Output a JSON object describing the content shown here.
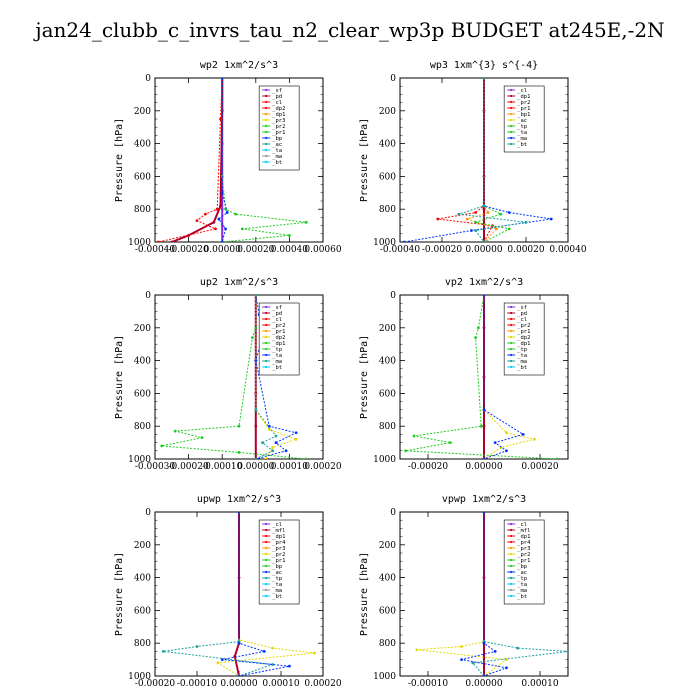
{
  "title": "jan24_clubb_c_invrs_tau_n2_clear_wp3p  BUDGET at245E,-2N",
  "colors": {
    "purple": "#8a2be2",
    "maroon": "#b0002a",
    "red": "#ff0000",
    "orange": "#ff9900",
    "yellow": "#e6d800",
    "green": "#22cc22",
    "blue": "#0033ff",
    "teal": "#1aa0a0",
    "cyan": "#00ccff",
    "gray": "#999999"
  },
  "chart_data": [
    {
      "type": "line",
      "title": "wp2   1xm^2/s^3",
      "ylabel": "Pressure [hPa]",
      "ylim": [
        1000,
        0
      ],
      "xlim": [
        -0.0004,
        0.0006
      ],
      "xticks": [
        "-0.00040",
        "-0.00020",
        "0.00000",
        "0.00020",
        "0.00040",
        "0.00060"
      ],
      "yticks": [
        "0",
        "200",
        "400",
        "600",
        "800",
        "1000"
      ],
      "legend": [
        "_sf",
        "_pd",
        "_cl",
        "_dp2",
        "_dp1",
        "_pr3",
        "_pr2",
        "_pr1",
        "_bp",
        "_ac",
        "_ta",
        "_ma",
        "_bt"
      ],
      "series": [
        {
          "name": "_sf",
          "color": "#8a2be2",
          "x": [
            0.0,
            0.0,
            0.0,
            0.0,
            0.0,
            0.0,
            0.0
          ],
          "y": [
            0,
            200,
            400,
            600,
            800,
            900,
            1000
          ]
        },
        {
          "name": "_cl",
          "color": "#b0002a",
          "x": [
            0.0,
            0.0,
            -1e-05,
            -5e-05,
            -0.0002,
            -0.0003
          ],
          "y": [
            0,
            200,
            780,
            880,
            960,
            1000
          ]
        },
        {
          "name": "_dp1",
          "color": "#ff0000",
          "x": [
            0.0,
            -1e-05,
            -3e-05,
            -0.0001,
            -0.00015,
            -4e-05,
            -0.00038
          ],
          "y": [
            0,
            250,
            800,
            830,
            870,
            920,
            1000
          ]
        },
        {
          "name": "_pr1",
          "color": "#22cc22",
          "x": [
            0.0,
            0.0,
            2e-05,
            8e-05,
            0.0005,
            0.00012,
            0.0004,
            0.0
          ],
          "y": [
            0,
            600,
            800,
            830,
            880,
            920,
            960,
            1000
          ]
        },
        {
          "name": "_ac",
          "color": "#0033ff",
          "x": [
            0.0,
            0.0,
            3e-05,
            -2e-05,
            2e-05,
            0.0
          ],
          "y": [
            0,
            700,
            820,
            860,
            920,
            1000
          ]
        }
      ]
    },
    {
      "type": "line",
      "title": "wp3   1xm^{3} s^{-4}",
      "ylabel": "Pressure [hPa]",
      "ylim": [
        1000,
        0
      ],
      "xlim": [
        -0.0004,
        0.0004
      ],
      "xticks": [
        "-0.00040",
        "-0.00020",
        "0.00000",
        "0.00020",
        "0.00040"
      ],
      "yticks": [
        "0",
        "200",
        "400",
        "600",
        "800",
        "1000"
      ],
      "legend": [
        "_cl",
        "_dp1",
        "_pr2",
        "_pr1",
        "_bp1",
        "_ac",
        "_tp",
        "_ta",
        "_ma",
        "_bt"
      ],
      "series": [
        {
          "name": "_cl",
          "color": "#b0002a",
          "x": [
            0.0,
            0.0,
            0.0,
            0.0,
            0.0
          ],
          "y": [
            0,
            200,
            600,
            800,
            1000
          ]
        },
        {
          "name": "_dp1",
          "color": "#ff0000",
          "x": [
            0.0,
            0.0,
            -4e-05,
            -0.00022,
            4e-05,
            0.0
          ],
          "y": [
            0,
            780,
            820,
            860,
            900,
            1000
          ]
        },
        {
          "name": "_pr1",
          "color": "#ff9900",
          "x": [
            0.0,
            0.0,
            2e-05,
            -8e-05,
            6e-05,
            0.0
          ],
          "y": [
            0,
            780,
            820,
            860,
            920,
            1000
          ]
        },
        {
          "name": "_ac",
          "color": "#22cc22",
          "x": [
            0.0,
            0.0,
            8e-05,
            -4e-05,
            0.00012,
            0.0
          ],
          "y": [
            0,
            780,
            830,
            880,
            920,
            1000
          ]
        },
        {
          "name": "_tp",
          "color": "#0033ff",
          "x": [
            0.0,
            0.0,
            0.00012,
            0.00032,
            -6e-05,
            -0.00038
          ],
          "y": [
            0,
            780,
            820,
            860,
            930,
            1000
          ]
        },
        {
          "name": "_ta",
          "color": "#1aa0a0",
          "x": [
            0.0,
            0.0,
            -0.00012,
            0.0002,
            -4e-05,
            0.0
          ],
          "y": [
            0,
            780,
            830,
            880,
            930,
            1000
          ]
        }
      ]
    },
    {
      "type": "line",
      "title": "up2   1xm^2/s^3",
      "ylabel": "Pressure [hPa]",
      "ylim": [
        1000,
        0
      ],
      "xlim": [
        -0.0003,
        0.0002
      ],
      "xticks": [
        "-0.00030",
        "-0.00020",
        "-0.00010",
        "0.00000",
        "0.00010",
        "0.00020"
      ],
      "yticks": [
        "0",
        "200",
        "400",
        "600",
        "800",
        "1000"
      ],
      "legend": [
        "_sf",
        "_pd",
        "_cl",
        "_pr2",
        "_pr1",
        "_dp2",
        "_dp1",
        "_tp",
        "_ta",
        "_ma",
        "_bt"
      ],
      "series": [
        {
          "name": "_cl",
          "color": "#b0002a",
          "x": [
            0.0,
            0.0,
            0.0,
            0.0,
            0.0,
            0.0
          ],
          "y": [
            0,
            200,
            400,
            600,
            800,
            1000
          ]
        },
        {
          "name": "_dp1",
          "color": "#22cc22",
          "x": [
            0.0,
            0.0,
            -1e-05,
            -5e-05,
            -0.00024,
            -0.00016,
            -0.00028,
            -5e-05,
            0.00015
          ],
          "y": [
            0,
            200,
            260,
            800,
            830,
            870,
            920,
            960,
            1000
          ]
        },
        {
          "name": "_pr1",
          "color": "#e6d800",
          "x": [
            0.0,
            0.0,
            4e-05,
            0.00012,
            5e-05,
            3e-05
          ],
          "y": [
            0,
            700,
            820,
            880,
            930,
            1000
          ]
        },
        {
          "name": "_tp",
          "color": "#0033ff",
          "x": [
            0.0,
            1e-05,
            2e-05,
            0.0,
            4e-05,
            0.00012,
            6e-05,
            9e-05,
            0.0
          ],
          "y": [
            0,
            120,
            250,
            400,
            800,
            840,
            900,
            950,
            1000
          ]
        },
        {
          "name": "_ta",
          "color": "#1aa0a0",
          "x": [
            0.0,
            0.0,
            6e-05,
            2e-05,
            5e-05,
            0.0
          ],
          "y": [
            0,
            700,
            860,
            900,
            950,
            1000
          ]
        }
      ]
    },
    {
      "type": "line",
      "title": "vp2   1xm^2/s^3",
      "ylabel": "Pressure [hPa]",
      "ylim": [
        1000,
        0
      ],
      "xlim": [
        -0.0003,
        0.0003
      ],
      "xticks": [
        "-0.00020",
        "0.00000",
        "0.00020"
      ],
      "yticks": [
        "0",
        "200",
        "400",
        "600",
        "800",
        "1000"
      ],
      "legend": [
        "_sf",
        "_pd",
        "_cl",
        "_pr2",
        "_pr1",
        "_dp2",
        "_dp1",
        "_tp",
        "_ta",
        "_ma",
        "_bt"
      ],
      "series": [
        {
          "name": "_cl",
          "color": "#b0002a",
          "x": [
            0.0,
            0.0,
            0.0,
            0.0,
            0.0
          ],
          "y": [
            0,
            200,
            500,
            800,
            1000
          ]
        },
        {
          "name": "_dp1",
          "color": "#22cc22",
          "x": [
            0.0,
            -2e-05,
            -3e-05,
            -1e-05,
            -0.00025,
            -0.00012,
            -0.00028,
            0.00026
          ],
          "y": [
            0,
            200,
            260,
            800,
            860,
            900,
            950,
            1000
          ]
        },
        {
          "name": "_pr1",
          "color": "#e6d800",
          "x": [
            0.0,
            0.0,
            8e-05,
            0.00018,
            6e-05,
            0.0
          ],
          "y": [
            0,
            700,
            840,
            880,
            930,
            1000
          ]
        },
        {
          "name": "_tp",
          "color": "#0033ff",
          "x": [
            0.0,
            0.0,
            0.00014,
            4e-05,
            8e-05,
            0.0
          ],
          "y": [
            0,
            700,
            850,
            900,
            950,
            1000
          ]
        }
      ]
    },
    {
      "type": "line",
      "title": "upwp   1xm^2/s^3",
      "ylabel": "Pressure [hPa]",
      "ylim": [
        1000,
        0
      ],
      "xlim": [
        -0.0002,
        0.0002
      ],
      "xticks": [
        "-0.00020",
        "-0.00010",
        "0.00000",
        "0.00010",
        "0.00020"
      ],
      "yticks": [
        "0",
        "200",
        "400",
        "600",
        "800",
        "1000"
      ],
      "legend": [
        "_cl",
        "_mfl",
        "_dp1",
        "_pr4",
        "_pr3",
        "_pr2",
        "_pr1",
        "_bp",
        "_ac",
        "_tp",
        "_ta",
        "_ma",
        "_bt"
      ],
      "series": [
        {
          "name": "_cl",
          "color": "#b0002a",
          "x": [
            0.0,
            0.0,
            0.0,
            -1e-05,
            0.0
          ],
          "y": [
            0,
            400,
            800,
            880,
            1000
          ]
        },
        {
          "name": "_pr1",
          "color": "#e6d800",
          "x": [
            0.0,
            0.0,
            8e-05,
            0.00018,
            -5e-05,
            0.0
          ],
          "y": [
            0,
            780,
            830,
            860,
            920,
            1000
          ]
        },
        {
          "name": "_tp",
          "color": "#1aa0a0",
          "x": [
            0.0,
            0.0,
            -0.0001,
            -0.00018,
            8e-05,
            0.0
          ],
          "y": [
            0,
            790,
            820,
            850,
            930,
            1000
          ]
        },
        {
          "name": "_ta",
          "color": "#0033ff",
          "x": [
            0.0,
            0.0,
            6e-05,
            -4e-05,
            0.00012,
            0.0
          ],
          "y": [
            0,
            800,
            850,
            900,
            940,
            1000
          ]
        }
      ]
    },
    {
      "type": "line",
      "title": "vpwp   1xm^2/s^3",
      "ylabel": "Pressure [hPa]",
      "ylim": [
        1000,
        0
      ],
      "xlim": [
        -0.00015,
        0.00015
      ],
      "xticks": [
        "-0.00010",
        "0.00000",
        "0.00010"
      ],
      "yticks": [
        "0",
        "200",
        "400",
        "600",
        "800",
        "1000"
      ],
      "legend": [
        "_cl",
        "_mfl",
        "_dp1",
        "_pr4",
        "_pr3",
        "_pr2",
        "_pr1",
        "_bp",
        "_ac",
        "_tp",
        "_ta",
        "_ma",
        "_bt"
      ],
      "series": [
        {
          "name": "_cl",
          "color": "#b0002a",
          "x": [
            0.0,
            0.0,
            0.0,
            0.0
          ],
          "y": [
            0,
            400,
            800,
            1000
          ]
        },
        {
          "name": "_pr1",
          "color": "#e6d800",
          "x": [
            0.0,
            0.0,
            -4e-05,
            -0.00012,
            4e-05,
            0.0
          ],
          "y": [
            0,
            790,
            820,
            840,
            900,
            1000
          ]
        },
        {
          "name": "_tp",
          "color": "#1aa0a0",
          "x": [
            0.0,
            0.0,
            6e-05,
            0.00015,
            -2e-05,
            0.0
          ],
          "y": [
            0,
            790,
            830,
            850,
            920,
            1000
          ]
        },
        {
          "name": "_ta",
          "color": "#0033ff",
          "x": [
            0.0,
            0.0,
            2e-05,
            -4e-05,
            4e-05,
            0.0
          ],
          "y": [
            0,
            800,
            850,
            900,
            950,
            1000
          ]
        }
      ]
    }
  ]
}
